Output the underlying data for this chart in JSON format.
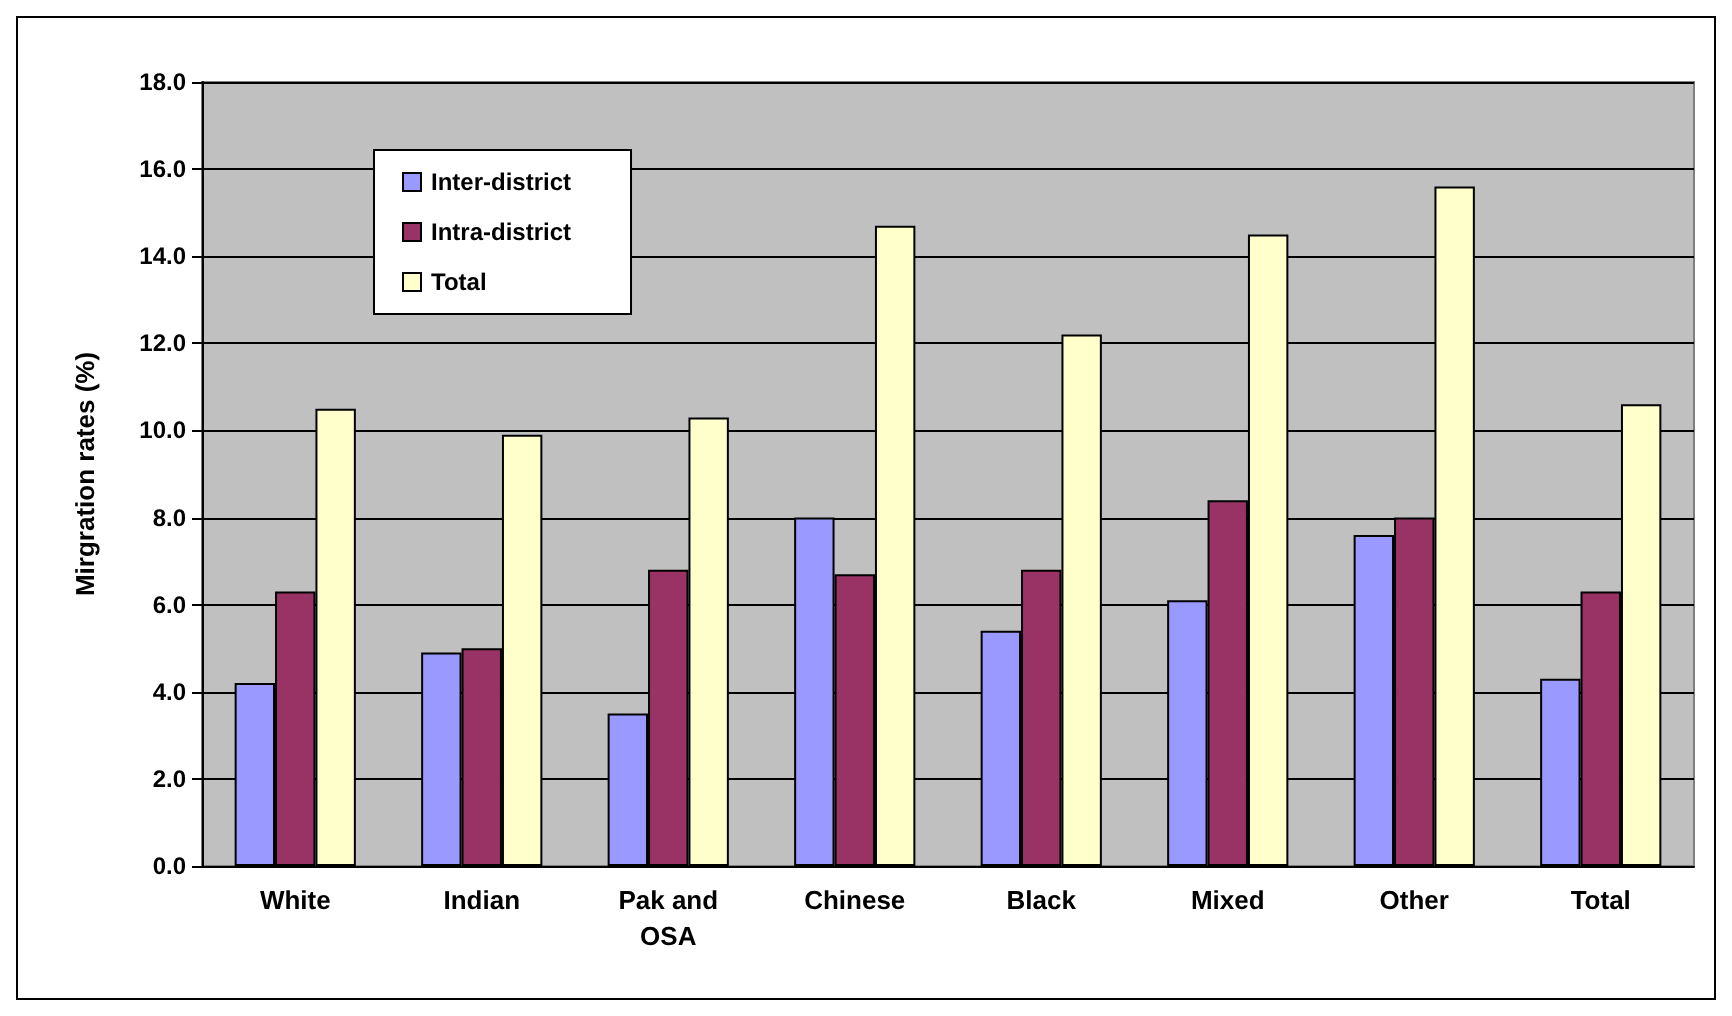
{
  "chart_data": {
    "type": "bar",
    "ylabel": "Mirgration rates (%)",
    "categories": [
      "White",
      "Indian",
      "Pak and\nOSA",
      "Chinese",
      "Black",
      "Mixed",
      "Other",
      "Total"
    ],
    "series": [
      {
        "name": "Inter-district",
        "color": "#9999ff",
        "values": [
          4.2,
          4.9,
          3.5,
          8.0,
          5.4,
          6.1,
          7.6,
          4.3
        ]
      },
      {
        "name": "Intra-district",
        "color": "#993366",
        "values": [
          6.3,
          5.0,
          6.8,
          6.7,
          6.8,
          8.4,
          8.0,
          6.3
        ]
      },
      {
        "name": "Total",
        "color": "#ffffcc",
        "values": [
          10.5,
          9.9,
          10.3,
          14.7,
          12.2,
          14.5,
          15.6,
          10.6
        ]
      }
    ],
    "ylim": [
      0,
      18
    ],
    "yticks": [
      {
        "value": 0,
        "label": "0.0"
      },
      {
        "value": 2,
        "label": "2.0"
      },
      {
        "value": 4,
        "label": "4.0"
      },
      {
        "value": 6,
        "label": "6.0"
      },
      {
        "value": 8,
        "label": "8.0"
      },
      {
        "value": 10,
        "label": "10.0"
      },
      {
        "value": 12,
        "label": "12.0"
      },
      {
        "value": 14,
        "label": "14.0"
      },
      {
        "value": 16,
        "label": "16.0"
      },
      {
        "value": 18,
        "label": "18.0"
      }
    ],
    "grid": "y",
    "legend": "top left"
  }
}
